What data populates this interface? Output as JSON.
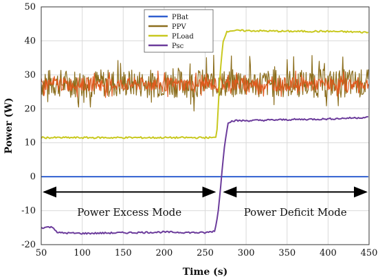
{
  "chart_data": {
    "type": "line",
    "title": "",
    "xlabel": "Time (s)",
    "ylabel": "Power (W)",
    "xlim": [
      50,
      450
    ],
    "ylim": [
      -20,
      50
    ],
    "xticks": [
      "50",
      "100",
      "150",
      "200",
      "250",
      "300",
      "350",
      "400",
      "450"
    ],
    "yticks": [
      "-20",
      "-10",
      "0",
      "10",
      "20",
      "30",
      "40",
      "50"
    ],
    "grid": true,
    "legend_position": "top-center",
    "series": [
      {
        "name": "PBat",
        "color": "#2f5fd0",
        "x": [
          50,
          450
        ],
        "y": [
          0,
          0
        ]
      },
      {
        "name": "PPV",
        "color": "#8b6d1c",
        "noise": "high",
        "x": [
          50,
          100,
          150,
          200,
          250,
          300,
          350,
          400,
          450
        ],
        "y": [
          27.5,
          27.5,
          27.5,
          27.5,
          27.5,
          27.5,
          27.5,
          27.5,
          27.5
        ]
      },
      {
        "name": "PLoad",
        "color": "#c8c81e",
        "x": [
          50,
          100,
          150,
          200,
          264,
          268,
          272,
          276,
          280,
          300,
          350,
          400,
          450
        ],
        "y": [
          11.5,
          11.5,
          11.5,
          11.5,
          11.5,
          30,
          40,
          42.5,
          43,
          43,
          42.8,
          42.8,
          42.5
        ]
      },
      {
        "name": "Psc",
        "color": "#6b3b9b",
        "x": [
          50,
          60,
          65,
          70,
          100,
          150,
          200,
          250,
          262,
          266,
          270,
          274,
          278,
          285,
          300,
          350,
          400,
          450
        ],
        "y": [
          -15,
          -14.8,
          -15,
          -16.5,
          -16.7,
          -16.5,
          -16.3,
          -16.5,
          -16,
          -10,
          0,
          10,
          16,
          16.5,
          16.5,
          16.8,
          17,
          17.5
        ]
      },
      {
        "name": "",
        "color": "#e05a1e",
        "noise": "medium",
        "x": [
          50,
          100,
          150,
          200,
          250,
          300,
          350,
          400,
          450
        ],
        "y": [
          27.2,
          27.2,
          27.2,
          27.2,
          27.2,
          27.2,
          27.2,
          27.2,
          27.2
        ]
      }
    ],
    "annotations": [
      {
        "text": "Power Excess Mode",
        "x_range": [
          50,
          265
        ],
        "y": -4.5,
        "label_y": -10.5
      },
      {
        "text": "Power Deficit Mode",
        "x_range": [
          270,
          450
        ],
        "y": -4.5,
        "label_y": -10.5
      }
    ]
  }
}
